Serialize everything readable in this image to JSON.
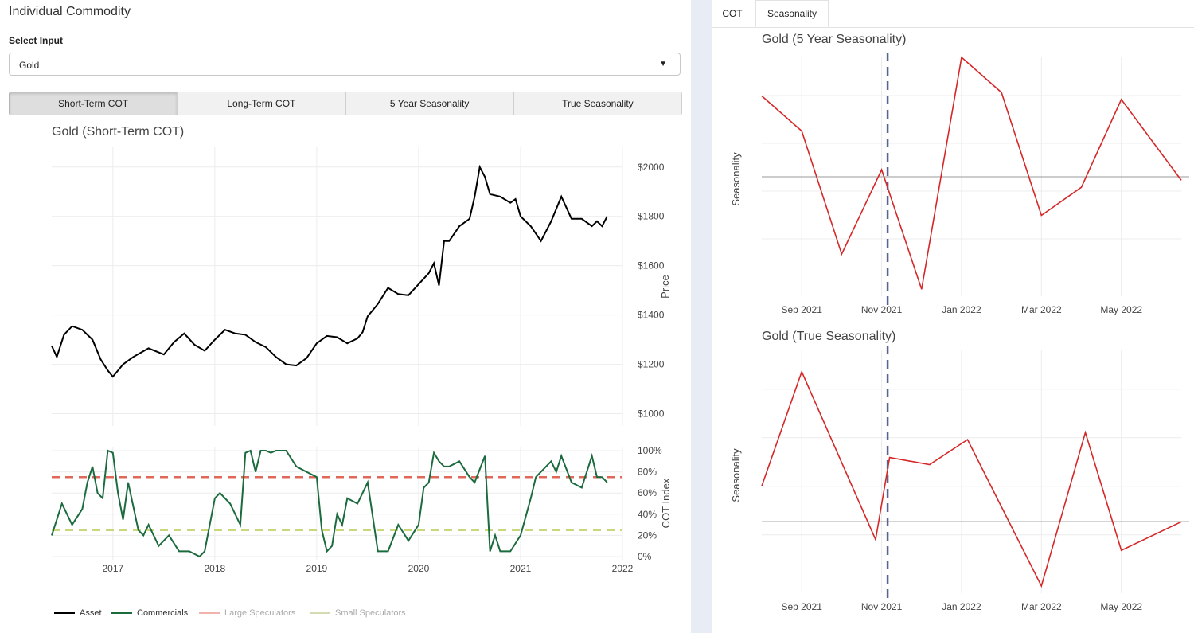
{
  "panel_title": "Individual Commodity",
  "select": {
    "label": "Select Input",
    "value": "Gold"
  },
  "buttons": [
    "Short-Term COT",
    "Long-Term COT",
    "5 Year Seasonality",
    "True Seasonality"
  ],
  "active_button": "Short-Term COT",
  "tabs": [
    "COT",
    "Seasonality"
  ],
  "active_tab": "Seasonality",
  "colors": {
    "asset": "#000000",
    "commercials": "#1b6b3e",
    "large_spec": "#e0685b",
    "small_spec": "#c9d77a",
    "seasonality": "#d62728",
    "marker": "#56648f",
    "grid": "#ececec"
  },
  "left_chart": {
    "title": "Gold (Short-Term COT)",
    "legend": [
      {
        "label": "Asset",
        "color": "#000000",
        "faded": false
      },
      {
        "label": "Commercials",
        "color": "#1b6b3e",
        "faded": false
      },
      {
        "label": "Large Speculators",
        "color": "#e0685b",
        "faded": true
      },
      {
        "label": "Small Speculators",
        "color": "#c9d77a",
        "faded": true
      }
    ]
  },
  "chart_data": [
    {
      "type": "line",
      "title": "Gold (Short-Term COT)",
      "ylabel": "Price",
      "ylim": [
        950,
        2080
      ],
      "xlim": [
        2016.4,
        2022.0
      ],
      "y_ticks": [
        1000,
        1200,
        1400,
        1600,
        1800,
        2000
      ],
      "y_tick_labels": [
        "$1000",
        "$1200",
        "$1400",
        "$1600",
        "$1800",
        "$2000"
      ],
      "x_ticks": [
        2017,
        2018,
        2019,
        2020,
        2021,
        2022
      ],
      "x_tick_labels": [
        "2017",
        "2018",
        "2019",
        "2020",
        "2021",
        "2022"
      ],
      "series": [
        {
          "name": "Asset",
          "x": [
            2016.4,
            2016.45,
            2016.52,
            2016.6,
            2016.7,
            2016.8,
            2016.88,
            2016.95,
            2017.0,
            2017.1,
            2017.2,
            2017.35,
            2017.5,
            2017.6,
            2017.7,
            2017.8,
            2017.9,
            2018.0,
            2018.1,
            2018.2,
            2018.3,
            2018.4,
            2018.5,
            2018.6,
            2018.7,
            2018.8,
            2018.9,
            2019.0,
            2019.1,
            2019.2,
            2019.3,
            2019.4,
            2019.45,
            2019.5,
            2019.6,
            2019.7,
            2019.8,
            2019.9,
            2020.0,
            2020.1,
            2020.15,
            2020.2,
            2020.25,
            2020.3,
            2020.4,
            2020.5,
            2020.55,
            2020.6,
            2020.65,
            2020.7,
            2020.8,
            2020.9,
            2020.95,
            2021.0,
            2021.1,
            2021.2,
            2021.3,
            2021.4,
            2021.5,
            2021.6,
            2021.7,
            2021.75,
            2021.8,
            2021.85
          ],
          "y": [
            1275,
            1230,
            1320,
            1355,
            1340,
            1300,
            1220,
            1175,
            1150,
            1200,
            1230,
            1265,
            1240,
            1290,
            1325,
            1280,
            1255,
            1300,
            1340,
            1325,
            1320,
            1290,
            1270,
            1230,
            1200,
            1195,
            1225,
            1285,
            1315,
            1310,
            1285,
            1305,
            1330,
            1395,
            1445,
            1510,
            1485,
            1480,
            1525,
            1570,
            1610,
            1520,
            1700,
            1700,
            1760,
            1790,
            1880,
            2000,
            1960,
            1890,
            1880,
            1855,
            1870,
            1800,
            1760,
            1700,
            1780,
            1880,
            1790,
            1790,
            1760,
            1780,
            1760,
            1800
          ]
        }
      ]
    },
    {
      "type": "line",
      "ylabel": "COT Index",
      "ylim": [
        -3,
        103
      ],
      "xlim": [
        2016.4,
        2022.0
      ],
      "y_ticks": [
        0,
        20,
        40,
        60,
        80,
        100
      ],
      "y_tick_labels": [
        "0%",
        "20%",
        "40%",
        "60%",
        "80%",
        "100%"
      ],
      "series": [
        {
          "name": "Commercials",
          "x": [
            2016.4,
            2016.5,
            2016.6,
            2016.7,
            2016.75,
            2016.8,
            2016.85,
            2016.9,
            2016.95,
            2017.0,
            2017.05,
            2017.1,
            2017.15,
            2017.25,
            2017.3,
            2017.35,
            2017.45,
            2017.55,
            2017.65,
            2017.75,
            2017.85,
            2017.9,
            2018.0,
            2018.05,
            2018.15,
            2018.25,
            2018.3,
            2018.35,
            2018.4,
            2018.45,
            2018.5,
            2018.55,
            2018.6,
            2018.7,
            2018.8,
            2018.9,
            2019.0,
            2019.05,
            2019.1,
            2019.15,
            2019.2,
            2019.25,
            2019.3,
            2019.4,
            2019.5,
            2019.6,
            2019.7,
            2019.8,
            2019.9,
            2020.0,
            2020.05,
            2020.1,
            2020.15,
            2020.2,
            2020.25,
            2020.3,
            2020.4,
            2020.5,
            2020.55,
            2020.65,
            2020.7,
            2020.75,
            2020.8,
            2020.9,
            2021.0,
            2021.1,
            2021.15,
            2021.2,
            2021.3,
            2021.35,
            2021.4,
            2021.5,
            2021.6,
            2021.7,
            2021.75,
            2021.8,
            2021.85
          ],
          "y": [
            20,
            50,
            30,
            45,
            70,
            85,
            60,
            55,
            100,
            98,
            60,
            35,
            70,
            25,
            20,
            30,
            10,
            20,
            5,
            5,
            0,
            5,
            55,
            60,
            50,
            30,
            98,
            100,
            80,
            100,
            100,
            98,
            100,
            100,
            85,
            80,
            75,
            25,
            5,
            10,
            40,
            30,
            55,
            50,
            70,
            5,
            5,
            30,
            15,
            30,
            65,
            70,
            98,
            90,
            85,
            85,
            90,
            75,
            70,
            95,
            5,
            20,
            5,
            5,
            20,
            55,
            75,
            80,
            90,
            80,
            95,
            70,
            65,
            95,
            75,
            75,
            70
          ]
        },
        {
          "name": "Large Speculators",
          "x": [
            2016.4,
            2022.0
          ],
          "y": [
            75,
            75
          ]
        },
        {
          "name": "Small Speculators",
          "x": [
            2016.4,
            2022.0
          ],
          "y": [
            25,
            25
          ]
        }
      ]
    },
    {
      "type": "line",
      "title": "Gold (5 Year Seasonality)",
      "ylabel": "Seasonality",
      "ylim": [
        -3.4,
        3.4
      ],
      "x_ticks": [
        1,
        3,
        5,
        7,
        9
      ],
      "x_tick_labels": [
        "Sep 2021",
        "Nov 2021",
        "Jan 2022",
        "Mar 2022",
        "May 2022"
      ],
      "series": [
        {
          "name": "Seasonality",
          "x": [
            0,
            1,
            2,
            3,
            4,
            5,
            6,
            7,
            8,
            9,
            10.5
          ],
          "y": [
            2.3,
            1.3,
            -2.2,
            0.2,
            -3.2,
            3.4,
            2.4,
            -1.1,
            -0.3,
            2.2,
            -0.1
          ]
        }
      ],
      "reference_line": 0,
      "vertical_marker_x": 3.15
    },
    {
      "type": "line",
      "title": "Gold (True Seasonality)",
      "ylabel": "Seasonality",
      "ylim": [
        -2.0,
        4.8
      ],
      "x_ticks": [
        1,
        3,
        5,
        7,
        9
      ],
      "x_tick_labels": [
        "Sep 2021",
        "Nov 2021",
        "Jan 2022",
        "Mar 2022",
        "May 2022"
      ],
      "series": [
        {
          "name": "Seasonality",
          "x": [
            0,
            1,
            2.85,
            3.2,
            4.2,
            5.15,
            7,
            8.1,
            9,
            10.5
          ],
          "y": [
            1.0,
            4.2,
            -0.5,
            1.8,
            1.6,
            2.3,
            -1.8,
            2.5,
            -0.8,
            0
          ]
        }
      ],
      "reference_line": 0,
      "vertical_marker_x": 3.15
    }
  ]
}
